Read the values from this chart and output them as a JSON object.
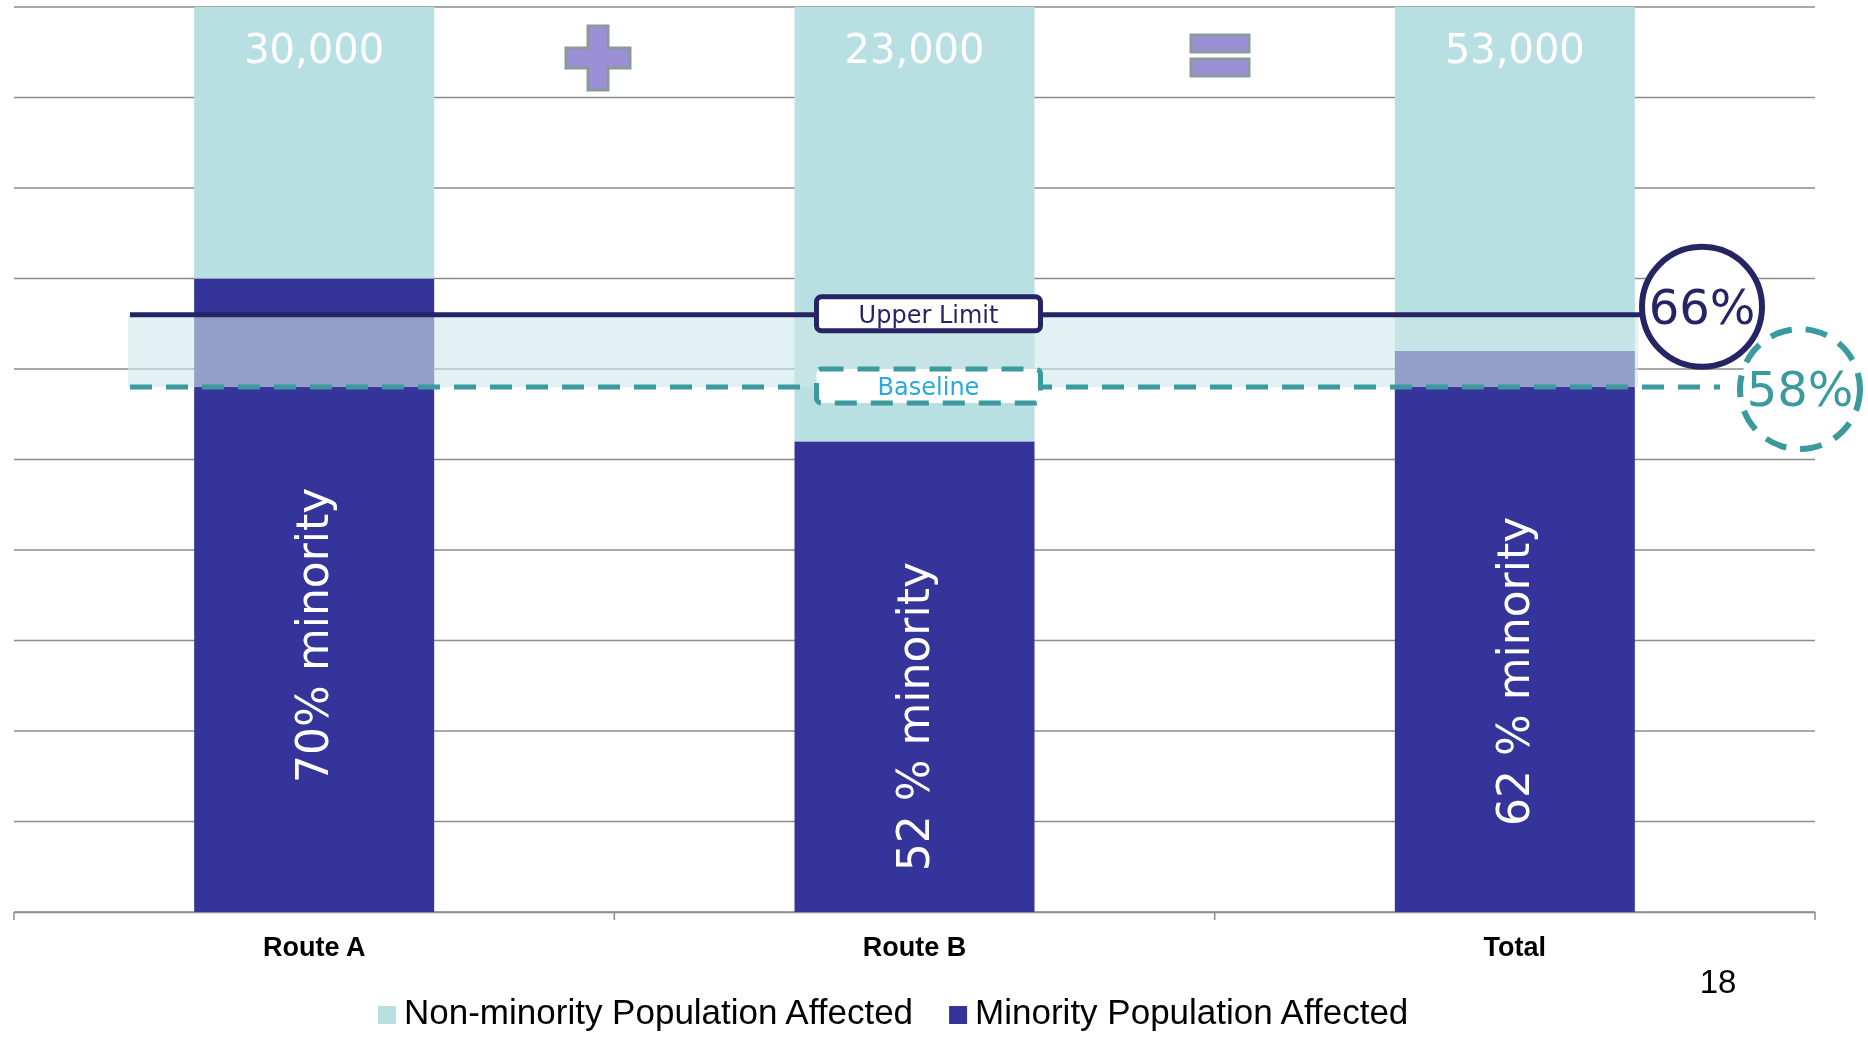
{
  "chart_data": {
    "type": "bar",
    "stacked": true,
    "categories": [
      "Route A",
      "Route B",
      "Total"
    ],
    "series": [
      {
        "name": "Minority Population Affected",
        "color": "#35349a",
        "values": [
          70,
          52,
          62
        ],
        "value_labels": [
          "70% minority",
          "52 % minority",
          "62 % minority"
        ]
      },
      {
        "name": "Non-minority Population Affected",
        "color": "#b8dfe2",
        "values": [
          30,
          48,
          38
        ]
      }
    ],
    "ylim": [
      0,
      100
    ],
    "yticks": [
      {
        "value": 0,
        "label": null
      },
      {
        "value": 10,
        "label": null
      },
      {
        "value": 20,
        "label": null
      },
      {
        "value": 30,
        "label": null
      },
      {
        "value": 40,
        "label": null
      },
      {
        "value": 50,
        "label": null
      },
      {
        "value": 60,
        "label": null
      },
      {
        "value": 70,
        "label": null
      },
      {
        "value": 80,
        "label": null
      },
      {
        "value": 90,
        "label": null
      },
      {
        "value": 100,
        "label": null
      }
    ],
    "ref_lines": [
      {
        "axis": "y",
        "value": 66,
        "label": "Upper Limit",
        "color": "#252566",
        "line_style": "solid"
      },
      {
        "axis": "y",
        "value": 58,
        "label": "Baseline",
        "color": "#3a9a9e",
        "line_style": "dashed"
      }
    ],
    "bands": [
      {
        "axis": "y",
        "from": 58,
        "to": 66,
        "color": "#cfe7ea"
      }
    ],
    "annotations": [
      "30,000",
      "23,000",
      "53,000",
      "66%",
      "58%",
      "18"
    ],
    "grid": "y",
    "legend": "bottom"
  }
}
